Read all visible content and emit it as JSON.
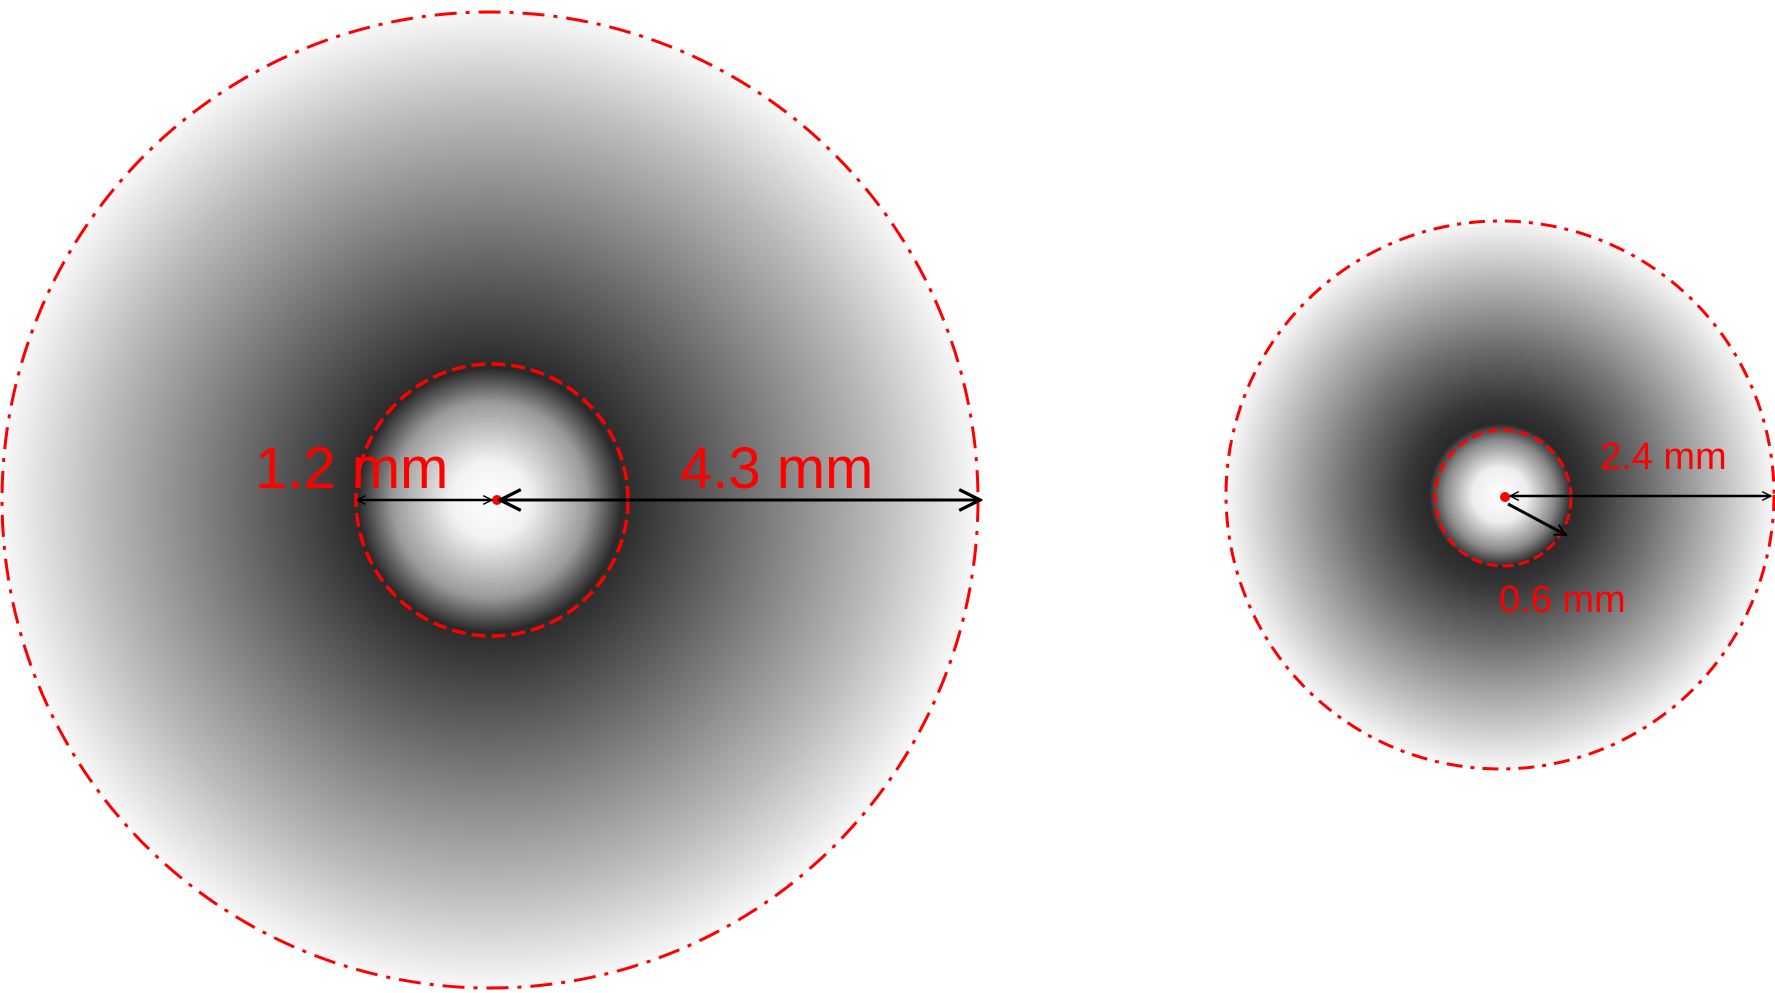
{
  "diagram": {
    "left": {
      "inner_radius_label": "1.2 mm",
      "outer_radius_label": "4.3 mm"
    },
    "right": {
      "inner_radius_label": "0.6 mm",
      "outer_radius_label": "2.4 mm"
    },
    "colors": {
      "boundary": "#ff0000",
      "arrow": "#000000",
      "dark_ring": "#1a1a1a",
      "light": "#ffffff"
    }
  }
}
